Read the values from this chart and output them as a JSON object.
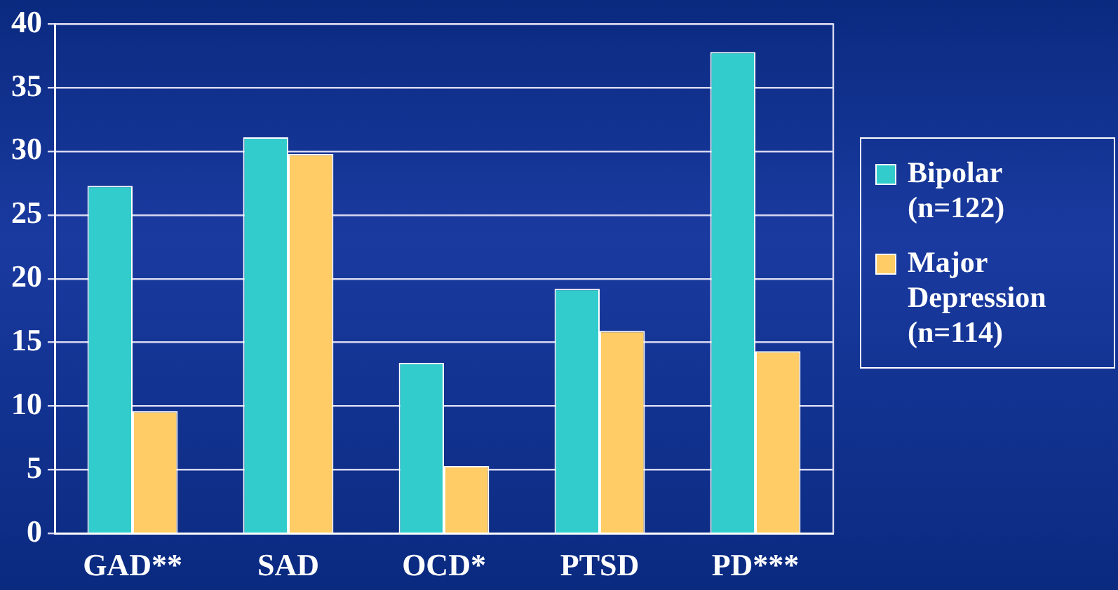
{
  "chart_data": {
    "type": "bar",
    "categories": [
      "GAD**",
      "SAD",
      "OCD*",
      "PTSD",
      "PD***"
    ],
    "series": [
      {
        "name": "Bipolar (n=122)",
        "color": "#33cccc",
        "values": [
          27.3,
          31.1,
          13.4,
          19.2,
          37.8
        ]
      },
      {
        "name": "Major Depression (n=114)",
        "color": "#ffcc66",
        "values": [
          9.6,
          29.8,
          5.3,
          15.9,
          14.3
        ]
      }
    ],
    "ylim": [
      0,
      40
    ],
    "yticks": [
      0,
      5,
      10,
      15,
      20,
      25,
      30,
      35,
      40
    ],
    "grid": "y",
    "legend": "right"
  }
}
